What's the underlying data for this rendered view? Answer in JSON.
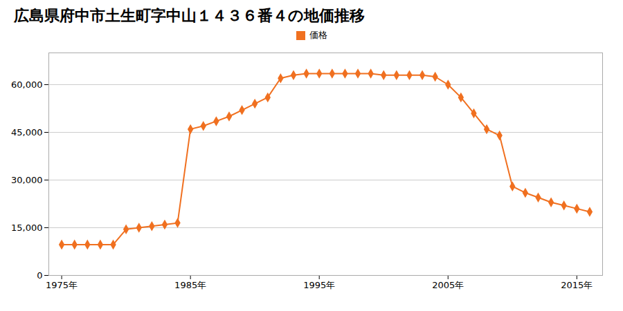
{
  "chart_data": {
    "type": "line",
    "title": "広島県府中市土生町字中山１４３６番４の地価推移",
    "x": [
      1975,
      1976,
      1977,
      1978,
      1979,
      1980,
      1981,
      1982,
      1983,
      1984,
      1985,
      1986,
      1987,
      1988,
      1989,
      1990,
      1991,
      1992,
      1993,
      1994,
      1995,
      1996,
      1997,
      1998,
      1999,
      2000,
      2001,
      2002,
      2003,
      2004,
      2005,
      2006,
      2007,
      2008,
      2009,
      2010,
      2011,
      2012,
      2013,
      2014,
      2015,
      2016
    ],
    "series": [
      {
        "name": "価格",
        "color": "#f07020",
        "marker": "diamond",
        "values": [
          9700,
          9700,
          9700,
          9700,
          9700,
          14500,
          15000,
          15500,
          16000,
          16500,
          46000,
          47000,
          48500,
          50000,
          52000,
          54000,
          56000,
          62000,
          63000,
          63500,
          63500,
          63500,
          63500,
          63500,
          63500,
          63000,
          63000,
          63000,
          63000,
          62500,
          60000,
          56000,
          51000,
          46000,
          44000,
          28000,
          26000,
          24500,
          23000,
          22000,
          21000,
          20000
        ]
      }
    ],
    "xlim": [
      1974,
      2017
    ],
    "xticks": [
      {
        "value": 1975,
        "label": "1975年"
      },
      {
        "value": 1985,
        "label": "1985年"
      },
      {
        "value": 1995,
        "label": "1995年"
      },
      {
        "value": 2005,
        "label": "2005年"
      },
      {
        "value": 2015,
        "label": "2015年"
      }
    ],
    "ylim": [
      0,
      70000
    ],
    "yticks": [
      0,
      {
        "value": 15000,
        "label": "15,000"
      },
      {
        "value": 30000,
        "label": "30,000"
      },
      {
        "value": 45000,
        "label": "45,000"
      },
      {
        "value": 60000,
        "label": "60,000"
      }
    ],
    "grid": "y",
    "legend": "top"
  }
}
